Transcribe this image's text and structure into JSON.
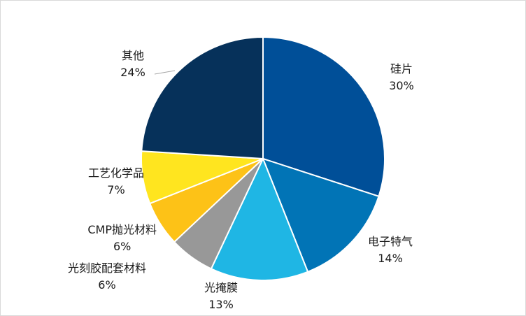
{
  "chart_data": {
    "type": "pie",
    "title": "",
    "start_angle_deg": 0,
    "direction": "clockwise",
    "legend": "none",
    "slices": [
      {
        "label": "硅片",
        "value": 30,
        "value_label": "30%",
        "color": "#004f98"
      },
      {
        "label": "电子特气",
        "value": 14,
        "value_label": "14%",
        "color": "#0174b6"
      },
      {
        "label": "光掩膜",
        "value": 13,
        "value_label": "13%",
        "color": "#1fb6e4"
      },
      {
        "label": "光刻胶配套材料",
        "value": 6,
        "value_label": "6%",
        "color": "#989898"
      },
      {
        "label": "CMP抛光材料",
        "value": 6,
        "value_label": "6%",
        "color": "#fdc217"
      },
      {
        "label": "工艺化学品",
        "value": 7,
        "value_label": "7%",
        "color": "#ffe51f"
      },
      {
        "label": "其他",
        "value": 24,
        "value_label": "24%",
        "color": "#06315a"
      }
    ]
  }
}
